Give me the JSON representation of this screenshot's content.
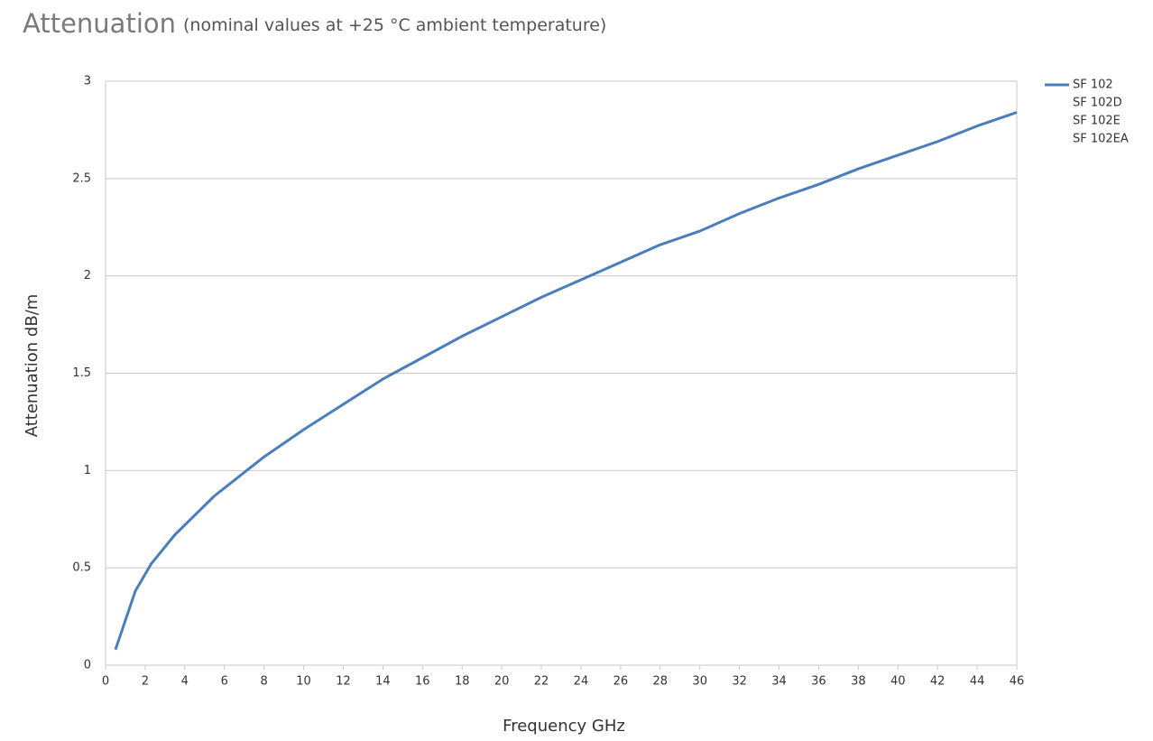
{
  "chart_data": {
    "type": "line",
    "title": "Attenuation",
    "subtitle": "(nominal values at +25 °C ambient temperature)",
    "x_label": "Frequency GHz",
    "y_label": "Attenuation dB/m",
    "x": [
      0.5,
      1.5,
      2.3,
      3.5,
      4.5,
      5.5,
      7,
      8,
      10,
      12,
      14,
      16,
      18,
      20,
      22,
      24,
      26,
      28,
      30,
      32,
      34,
      36,
      38,
      40,
      42,
      44,
      46
    ],
    "series": [
      {
        "name": "SF 102",
        "color": "#4a7ebb",
        "values": [
          0.08,
          0.38,
          0.52,
          0.67,
          0.77,
          0.87,
          0.99,
          1.07,
          1.21,
          1.34,
          1.47,
          1.58,
          1.69,
          1.79,
          1.89,
          1.98,
          2.07,
          2.16,
          2.23,
          2.32,
          2.4,
          2.47,
          2.55,
          2.62,
          2.69,
          2.77,
          2.84
        ]
      },
      {
        "name": "SF 102D"
      },
      {
        "name": "SF 102E"
      },
      {
        "name": "SF 102EA"
      }
    ],
    "xlim": [
      0,
      46
    ],
    "xticks": [
      0,
      2,
      4,
      6,
      8,
      10,
      12,
      14,
      16,
      18,
      20,
      22,
      24,
      26,
      28,
      30,
      32,
      34,
      36,
      38,
      40,
      42,
      44,
      46
    ],
    "ylim": [
      0,
      3
    ],
    "yticks": [
      0,
      0.5,
      1,
      1.5,
      2,
      2.5,
      3
    ],
    "grid": true,
    "legend": "right"
  }
}
